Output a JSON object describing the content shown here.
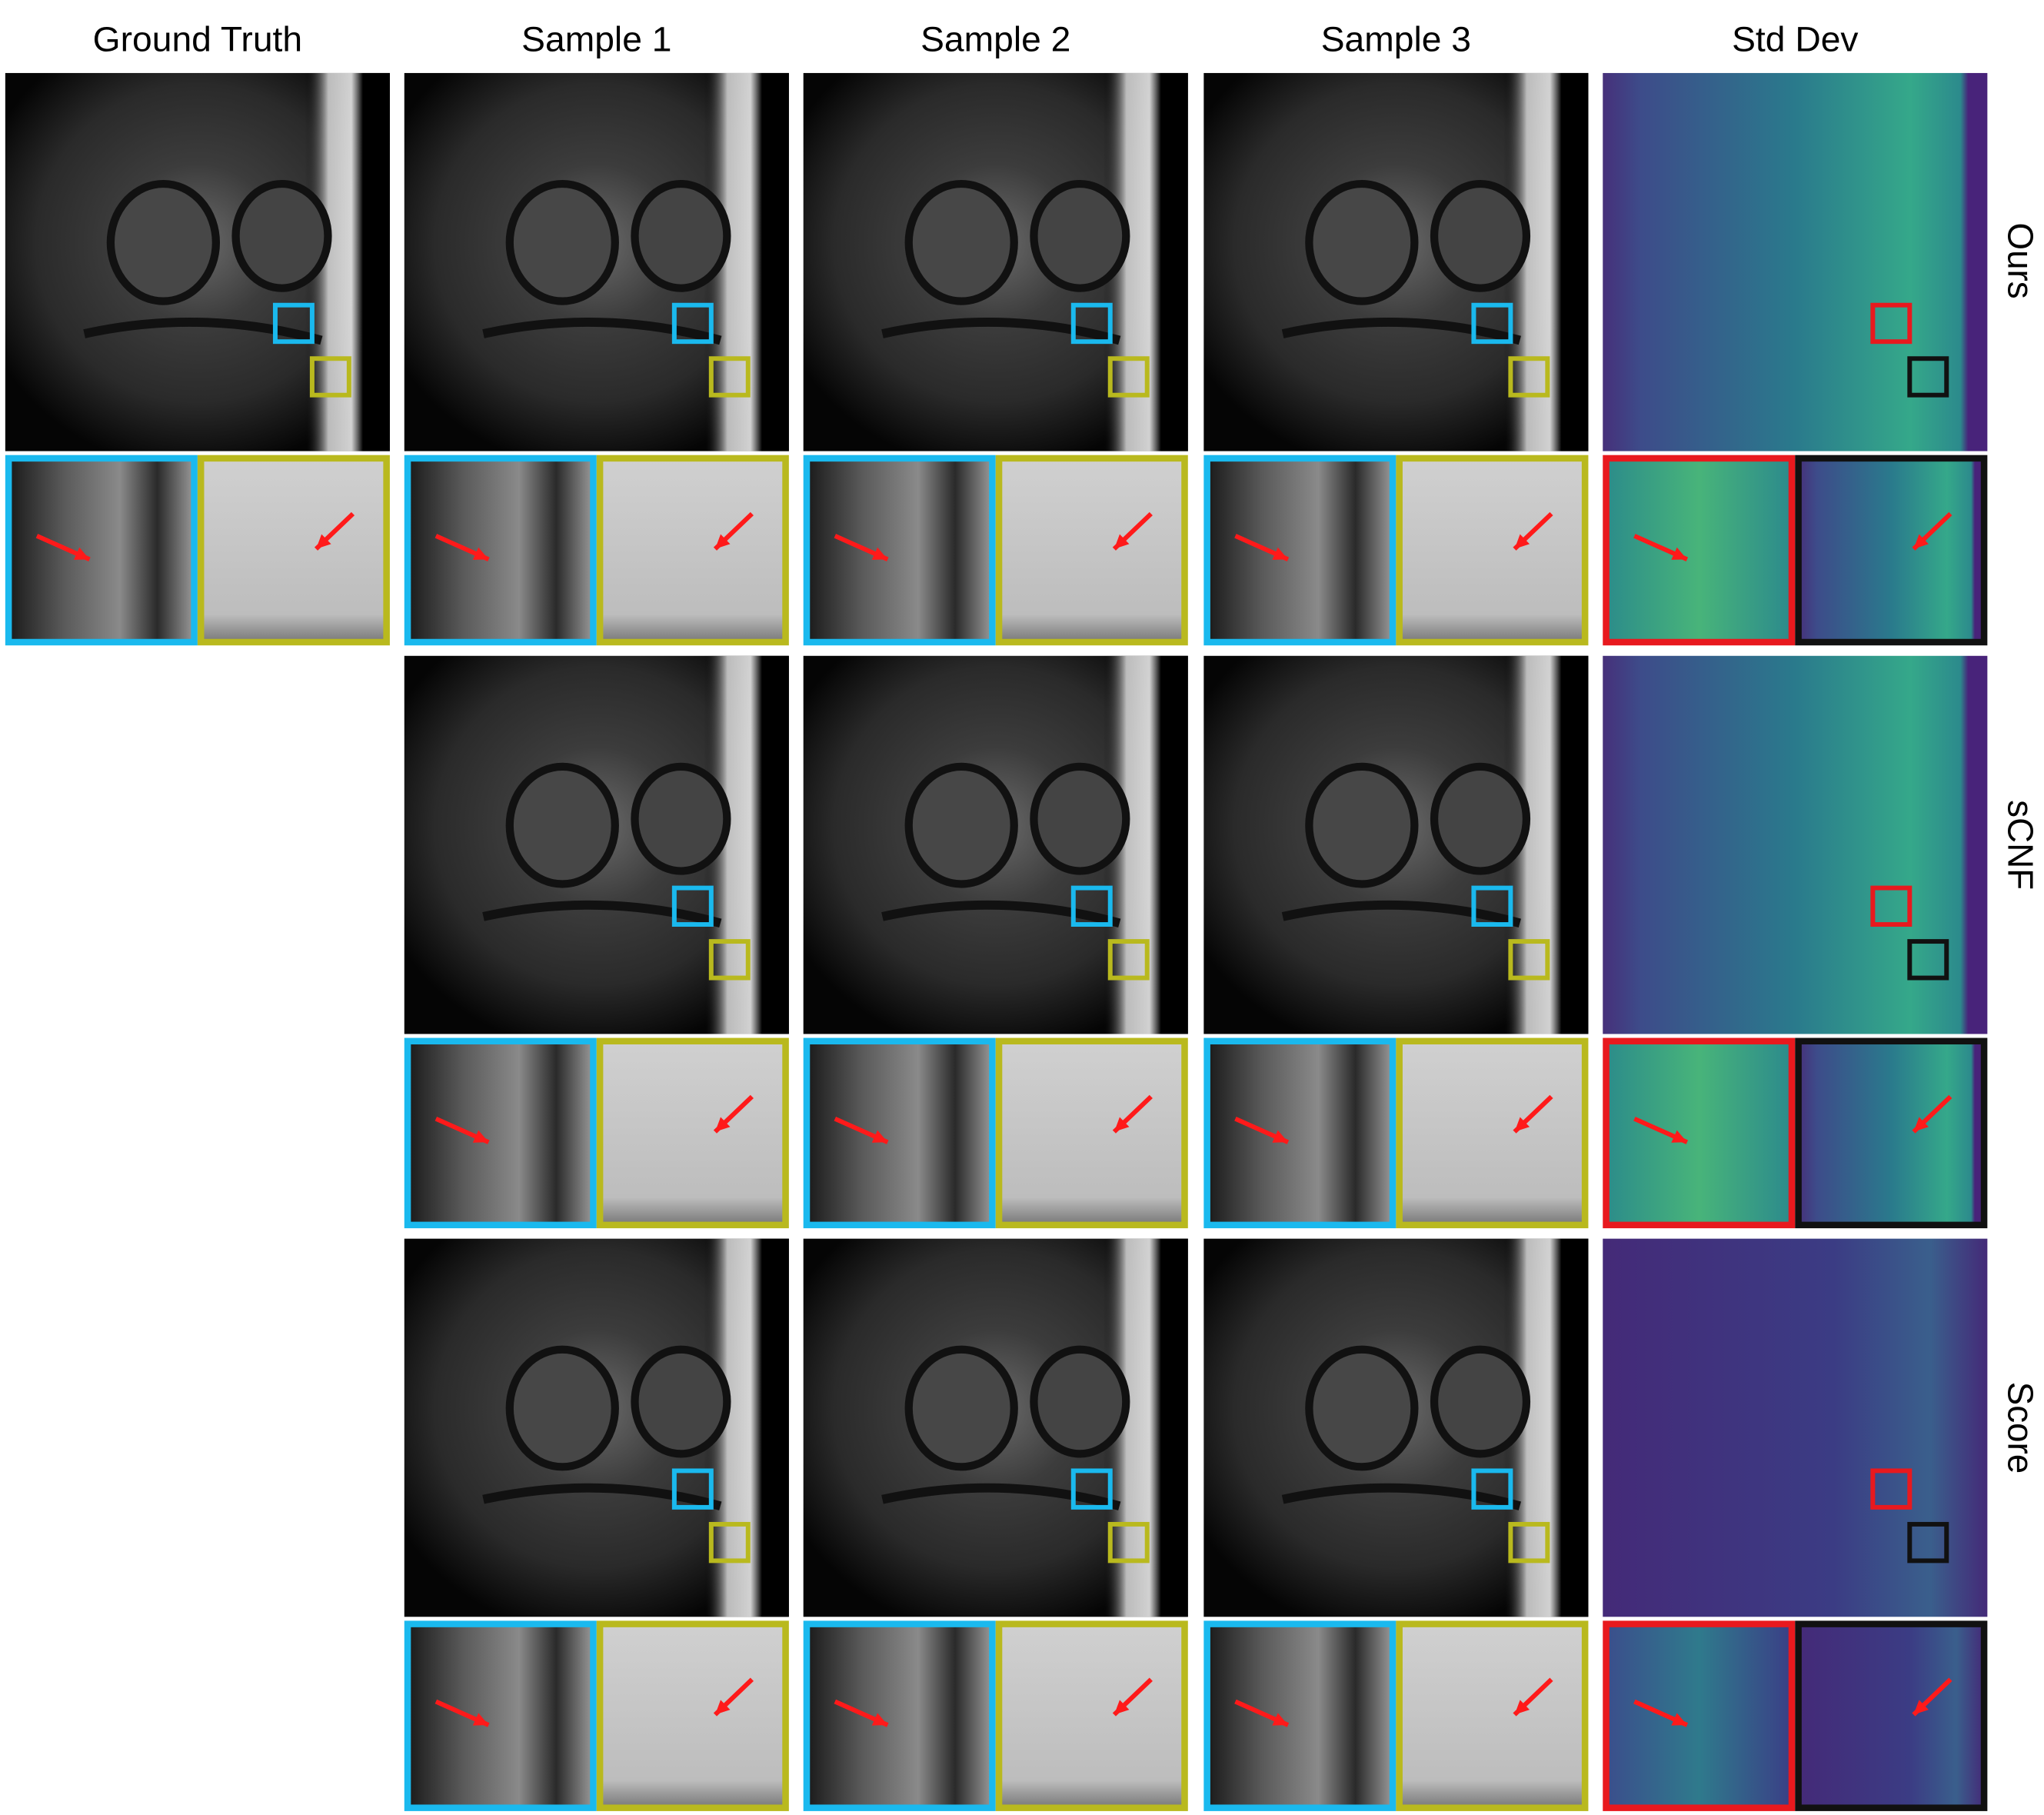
{
  "columns": [
    "Ground Truth",
    "Sample 1",
    "Sample 2",
    "Sample 3",
    "Std Dev"
  ],
  "rows": [
    "Ours",
    "sCNF",
    "Score"
  ]
}
